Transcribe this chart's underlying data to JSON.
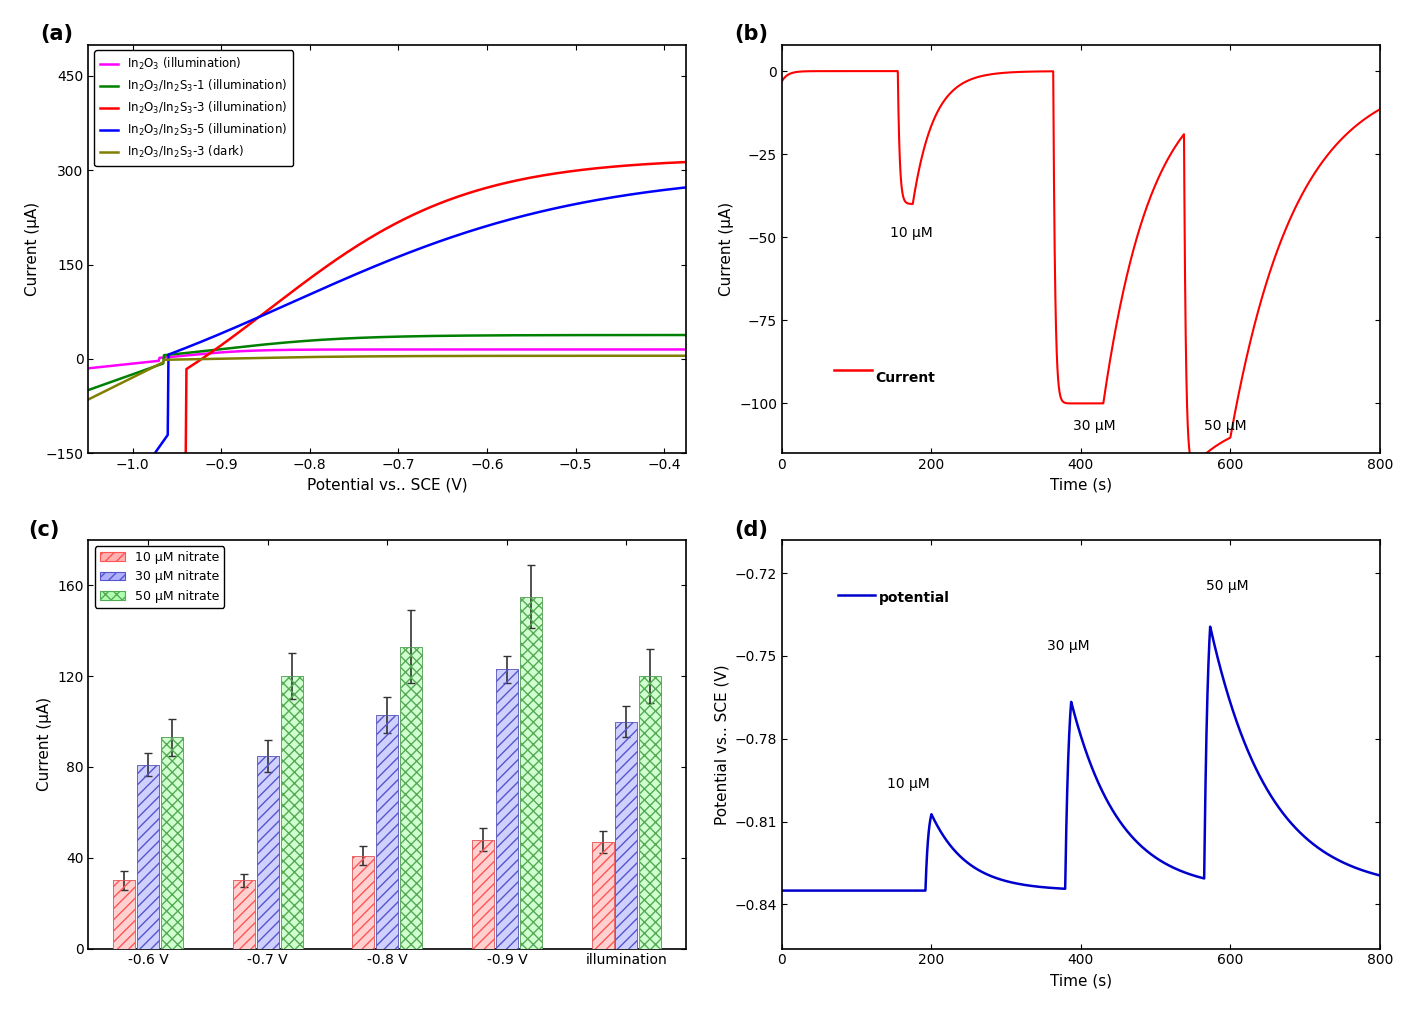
{
  "panel_a": {
    "xlabel": "Potential νs. SCE (V)",
    "ylabel": "Current (μA)",
    "xlim": [
      -1.05,
      -0.375
    ],
    "ylim": [
      -150,
      500
    ],
    "yticks": [
      -150,
      0,
      150,
      300,
      450
    ],
    "xticks": [
      -1.0,
      -0.9,
      -0.8,
      -0.7,
      -0.6,
      -0.5,
      -0.4
    ],
    "lines": [
      {
        "label": "In$_2$O$_3$ (illumination)",
        "color": "#FF00FF",
        "lw": 1.8
      },
      {
        "label": "In$_2$O$_3$/In$_2$S$_3$-1 (illumination)",
        "color": "#008000",
        "lw": 1.8
      },
      {
        "label": "In$_2$O$_3$/In$_2$S$_3$-3 (illumination)",
        "color": "#FF0000",
        "lw": 1.8
      },
      {
        "label": "In$_2$O$_3$/In$_2$S$_3$-5 (illumination)",
        "color": "#0000FF",
        "lw": 1.8
      },
      {
        "label": "In$_2$O$_3$/In$_2$S$_3$-3 (dark)",
        "color": "#808000",
        "lw": 1.8
      }
    ]
  },
  "panel_b": {
    "xlabel": "Time (s)",
    "ylabel": "Current (μA)",
    "xlim": [
      0,
      800
    ],
    "ylim": [
      -115,
      8
    ],
    "yticks": [
      0,
      -25,
      -50,
      -75,
      -100
    ],
    "xticks": [
      0,
      200,
      400,
      600,
      800
    ],
    "color": "#FF0000"
  },
  "panel_c": {
    "ylabel": "Current (μA)",
    "categories": [
      "-0.6 V",
      "-0.7 V",
      "-0.8 V",
      "-0.9 V",
      "illumination"
    ],
    "ylim": [
      0,
      180
    ],
    "yticks": [
      0,
      40,
      80,
      120,
      160
    ],
    "bar_data": [
      {
        "label": "10 μM nitrate",
        "color_top": "#FF4444",
        "color_bot": "#FFFFFF",
        "hatch": "///",
        "values": [
          30,
          30,
          41,
          48,
          47
        ],
        "errors": [
          4,
          3,
          4,
          5,
          5
        ]
      },
      {
        "label": "30 μM nitrate",
        "color_top": "#4444CC",
        "color_bot": "#FFFFFF",
        "hatch": "///",
        "values": [
          81,
          85,
          103,
          123,
          100
        ],
        "errors": [
          5,
          7,
          8,
          6,
          7
        ]
      },
      {
        "label": "50 μM nitrate",
        "color_top": "#44AA44",
        "color_bot": "#FFFFFF",
        "hatch": "xxx",
        "values": [
          93,
          120,
          133,
          155,
          120
        ],
        "errors": [
          8,
          10,
          16,
          14,
          12
        ]
      }
    ]
  },
  "panel_d": {
    "xlabel": "Time (s)",
    "ylabel": "Potential νs. SCE (V)",
    "xlim": [
      0,
      800
    ],
    "ylim": [
      -0.856,
      -0.708
    ],
    "yticks": [
      -0.72,
      -0.75,
      -0.78,
      -0.81,
      -0.84
    ],
    "xticks": [
      0,
      200,
      400,
      600,
      800
    ],
    "baseline": -0.835,
    "color": "#0000CC"
  }
}
